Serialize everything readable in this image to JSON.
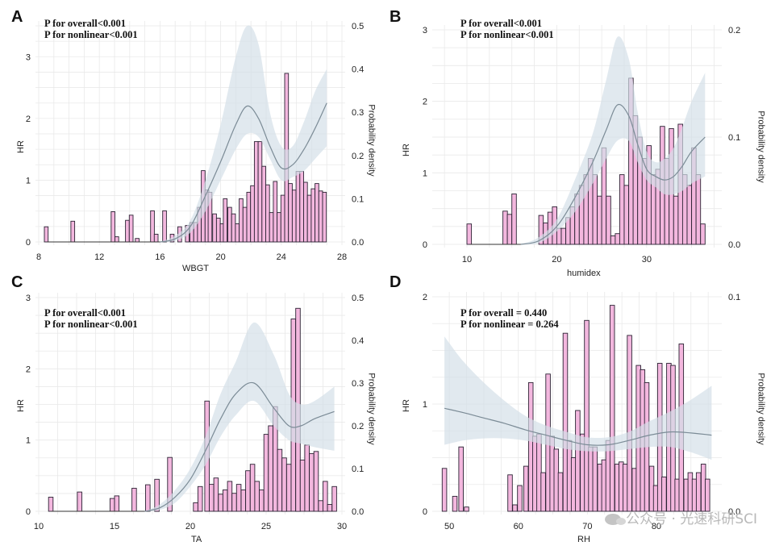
{
  "chart_data": [
    {
      "id": "A",
      "type": "bar+line",
      "panel_letter": "A",
      "stats": [
        "P for overall<0.001",
        "P for nonlinear<0.001"
      ],
      "xlabel": "WBGT",
      "ylabel_left": "HR",
      "ylabel_right": "Probability density",
      "xlim": [
        8,
        28
      ],
      "xticks": [
        8,
        12,
        16,
        20,
        24,
        28
      ],
      "ylim_left": [
        0,
        3.5
      ],
      "yticks_left": [
        0,
        1,
        2,
        3
      ],
      "ylim_right": [
        0,
        0.5
      ],
      "yticks_right": [
        "0.0",
        "0.1",
        "0.2",
        "0.3",
        "0.4",
        "0.5"
      ],
      "bin_width": 0.25,
      "histogram": {
        "x": [
          8.5,
          10.25,
          12.9,
          13.15,
          13.85,
          14.1,
          14.5,
          15.5,
          15.75,
          16.3,
          16.8,
          17.3,
          17.8,
          18.1,
          18.35,
          18.6,
          18.85,
          19.1,
          19.3,
          19.6,
          19.85,
          20.1,
          20.3,
          20.6,
          20.85,
          21.1,
          21.35,
          21.6,
          21.85,
          22.1,
          22.35,
          22.6,
          22.85,
          23.1,
          23.35,
          23.6,
          23.85,
          24.1,
          24.35,
          24.6,
          24.85,
          25.1,
          25.35,
          25.6,
          25.85,
          26.1,
          26.35,
          26.6,
          26.85
        ],
        "density": [
          0.035,
          0.048,
          0.07,
          0.012,
          0.05,
          0.062,
          0.008,
          0.072,
          0.018,
          0.072,
          0.018,
          0.035,
          0.038,
          0.045,
          0.045,
          0.08,
          0.165,
          0.12,
          0.115,
          0.065,
          0.055,
          0.042,
          0.1,
          0.08,
          0.065,
          0.042,
          0.1,
          0.08,
          0.115,
          0.13,
          0.232,
          0.232,
          0.175,
          0.132,
          0.068,
          0.14,
          0.068,
          0.108,
          0.39,
          0.135,
          0.12,
          0.163,
          0.163,
          0.138,
          0.108,
          0.123,
          0.135,
          0.118,
          0.115
        ]
      },
      "hr_curve": {
        "x": [
          16,
          17,
          18,
          19,
          20,
          21,
          21.75,
          22.5,
          23.25,
          24,
          24.75,
          25.5,
          26.25,
          27
        ],
        "hr": [
          0,
          0.05,
          0.25,
          0.75,
          1.3,
          1.9,
          2.2,
          2.0,
          1.55,
          1.2,
          1.25,
          1.5,
          1.85,
          2.25
        ],
        "lower": [
          0,
          0.02,
          0.15,
          0.5,
          1.0,
          1.5,
          1.75,
          1.7,
          1.35,
          1.0,
          1.05,
          1.15,
          1.35,
          1.55
        ],
        "upper": [
          0,
          0.1,
          0.35,
          1.0,
          1.9,
          3.0,
          3.5,
          3.2,
          2.1,
          1.55,
          1.55,
          1.95,
          2.45,
          2.8
        ]
      }
    },
    {
      "id": "B",
      "type": "bar+line",
      "panel_letter": "B",
      "stats": [
        "P for overall<0.001",
        "P for nonlinear<0.001"
      ],
      "xlabel": "humidex",
      "ylabel_left": "HR",
      "ylabel_right": "Probability density",
      "xlim": [
        6.5,
        38
      ],
      "xticks": [
        10,
        20,
        30
      ],
      "ylim_left": [
        0,
        3
      ],
      "yticks_left": [
        0,
        1,
        2,
        3
      ],
      "ylim_right": [
        0,
        0.2
      ],
      "yticks_right": [
        "0.0",
        "0.1",
        "0.2"
      ],
      "bin_width": 0.5,
      "histogram": {
        "x": [
          10.25,
          14.25,
          14.75,
          15.25,
          18.25,
          18.75,
          19.25,
          19.75,
          20.25,
          20.75,
          21.25,
          21.75,
          22.25,
          22.75,
          23.25,
          23.75,
          24.25,
          24.75,
          25.25,
          25.75,
          26.25,
          26.75,
          27.25,
          27.75,
          28.25,
          28.75,
          29.25,
          29.75,
          30.25,
          30.75,
          31.25,
          31.75,
          32.25,
          32.75,
          33.25,
          33.75,
          34.25,
          34.75,
          35.25,
          35.75,
          36.25
        ],
        "density": [
          0.019,
          0.031,
          0.028,
          0.047,
          0.027,
          0.02,
          0.03,
          0.035,
          0.015,
          0.015,
          0.025,
          0.035,
          0.047,
          0.055,
          0.065,
          0.08,
          0.065,
          0.045,
          0.09,
          0.045,
          0.008,
          0.01,
          0.065,
          0.055,
          0.155,
          0.12,
          0.1,
          0.08,
          0.092,
          0.065,
          0.07,
          0.11,
          0.08,
          0.108,
          0.045,
          0.112,
          0.065,
          0.055,
          0.09,
          0.065,
          0.019
        ]
      },
      "hr_curve": {
        "x": [
          16,
          18,
          20,
          22,
          24,
          25.5,
          26.75,
          28,
          29,
          30,
          31,
          32,
          33,
          34,
          35,
          36.5
        ],
        "hr": [
          0.0,
          0.05,
          0.25,
          0.65,
          1.15,
          1.6,
          1.95,
          1.8,
          1.4,
          1.05,
          0.95,
          0.9,
          0.95,
          1.1,
          1.3,
          1.5
        ],
        "lower": [
          0.0,
          0.02,
          0.18,
          0.45,
          0.85,
          1.2,
          1.45,
          1.45,
          1.15,
          0.9,
          0.8,
          0.7,
          0.7,
          0.75,
          0.85,
          0.95
        ],
        "upper": [
          0.0,
          0.1,
          0.35,
          0.9,
          1.55,
          2.3,
          2.9,
          2.6,
          1.85,
          1.3,
          1.15,
          1.2,
          1.35,
          1.65,
          2.0,
          2.4
        ]
      }
    },
    {
      "id": "C",
      "type": "bar+line",
      "panel_letter": "C",
      "stats": [
        "P for overall<0.001",
        "P for nonlinear<0.001"
      ],
      "xlabel": "TA",
      "ylabel_left": "HR",
      "ylabel_right": "Probability density",
      "xlim": [
        10,
        30
      ],
      "xticks": [
        10,
        15,
        20,
        25,
        30
      ],
      "ylim_left": [
        0,
        3
      ],
      "yticks_left": [
        0,
        1,
        2,
        3
      ],
      "ylim_right": [
        0,
        0.5
      ],
      "yticks_right": [
        "0.0",
        "0.1",
        "0.2",
        "0.3",
        "0.4",
        "0.5"
      ],
      "bin_width": 0.3,
      "histogram": {
        "x": [
          10.8,
          12.7,
          14.85,
          15.15,
          16.3,
          17.2,
          17.8,
          18.65,
          20.35,
          20.65,
          21.1,
          21.4,
          21.7,
          22.0,
          22.3,
          22.6,
          22.9,
          23.2,
          23.5,
          23.8,
          24.1,
          24.4,
          24.7,
          25.0,
          25.3,
          25.6,
          25.9,
          26.2,
          26.5,
          26.8,
          27.1,
          27.4,
          27.7,
          28.0,
          28.3,
          28.6,
          28.9,
          29.2,
          29.5
        ],
        "density": [
          0.033,
          0.045,
          0.03,
          0.036,
          0.054,
          0.062,
          0.075,
          0.126,
          0.02,
          0.058,
          0.258,
          0.063,
          0.078,
          0.04,
          0.05,
          0.07,
          0.042,
          0.063,
          0.05,
          0.095,
          0.11,
          0.07,
          0.05,
          0.18,
          0.2,
          0.245,
          0.145,
          0.125,
          0.11,
          0.45,
          0.475,
          0.12,
          0.155,
          0.135,
          0.14,
          0.025,
          0.07,
          0.016,
          0.058
        ]
      },
      "hr_curve": {
        "x": [
          17,
          18,
          19,
          20,
          21,
          22,
          23,
          24.2,
          25.5,
          26.5,
          27.3,
          28.2,
          29.5
        ],
        "hr": [
          0,
          0.05,
          0.2,
          0.45,
          0.85,
          1.3,
          1.65,
          1.8,
          1.45,
          1.2,
          1.2,
          1.3,
          1.4
        ],
        "lower": [
          0,
          0.02,
          0.12,
          0.35,
          0.65,
          1.05,
          1.35,
          1.55,
          1.2,
          1.0,
          0.95,
          0.9,
          0.85
        ],
        "upper": [
          0,
          0.1,
          0.3,
          0.6,
          1.05,
          1.65,
          2.1,
          2.65,
          2.2,
          1.65,
          1.5,
          1.55,
          1.75
        ]
      }
    },
    {
      "id": "D",
      "type": "bar+line",
      "panel_letter": "D",
      "stats": [
        "P for overall = 0.440",
        "P for nonlinear = 0.264"
      ],
      "xlabel": "RH",
      "ylabel_left": "HR",
      "ylabel_right": "Probability density",
      "xlim": [
        48,
        89
      ],
      "xticks": [
        50,
        60,
        70,
        80
      ],
      "ylim_left": [
        0,
        2
      ],
      "yticks_left": [
        0,
        1,
        2
      ],
      "ylim_right": [
        0,
        0.1
      ],
      "yticks_right": [
        "0.0",
        "0.1"
      ],
      "bin_width": 0.65,
      "histogram": {
        "x": [
          49.3,
          50.8,
          51.7,
          52.5,
          58.8,
          59.5,
          60.2,
          61.1,
          61.8,
          62.4,
          63.0,
          63.6,
          64.3,
          64.9,
          65.5,
          66.1,
          66.8,
          67.4,
          68.0,
          68.6,
          69.3,
          69.9,
          70.5,
          71.1,
          71.8,
          72.4,
          73.0,
          73.6,
          74.3,
          74.9,
          75.5,
          76.1,
          76.8,
          77.4,
          78.0,
          78.6,
          79.3,
          79.9,
          80.5,
          81.1,
          81.8,
          82.4,
          83.0,
          83.6,
          84.3,
          84.9,
          85.5,
          86.1,
          86.8,
          87.4
        ],
        "density": [
          0.02,
          0.007,
          0.03,
          0.002,
          0.017,
          0.003,
          0.012,
          0.021,
          0.06,
          0.035,
          0.036,
          0.018,
          0.064,
          0.035,
          0.029,
          0.018,
          0.083,
          0.033,
          0.025,
          0.047,
          0.036,
          0.089,
          0.03,
          0.03,
          0.022,
          0.024,
          0.033,
          0.096,
          0.022,
          0.023,
          0.022,
          0.082,
          0.02,
          0.068,
          0.066,
          0.06,
          0.021,
          0.012,
          0.069,
          0.016,
          0.069,
          0.068,
          0.015,
          0.078,
          0.015,
          0.018,
          0.015,
          0.018,
          0.022,
          0.015
        ]
      },
      "hr_curve": {
        "x": [
          49.3,
          52,
          55,
          58,
          61,
          64,
          67,
          70,
          73,
          76,
          79,
          82,
          85,
          88
        ],
        "hr": [
          0.96,
          0.92,
          0.87,
          0.82,
          0.76,
          0.71,
          0.66,
          0.62,
          0.62,
          0.66,
          0.71,
          0.74,
          0.73,
          0.71
        ],
        "lower": [
          0.62,
          0.66,
          0.68,
          0.68,
          0.66,
          0.62,
          0.58,
          0.56,
          0.56,
          0.58,
          0.6,
          0.6,
          0.55,
          0.48
        ],
        "upper": [
          1.63,
          1.4,
          1.2,
          1.03,
          0.89,
          0.8,
          0.74,
          0.69,
          0.69,
          0.74,
          0.84,
          0.93,
          1.04,
          1.17
        ]
      }
    }
  ],
  "watermark": "公众号 · 光速科研SCI",
  "colors": {
    "bar_fill": "#f3b7de",
    "bar_stroke": "#2b2233",
    "ci_band": "#d3dee7",
    "hr_line": "#7b8b96",
    "grid": "#e9e9e9"
  }
}
